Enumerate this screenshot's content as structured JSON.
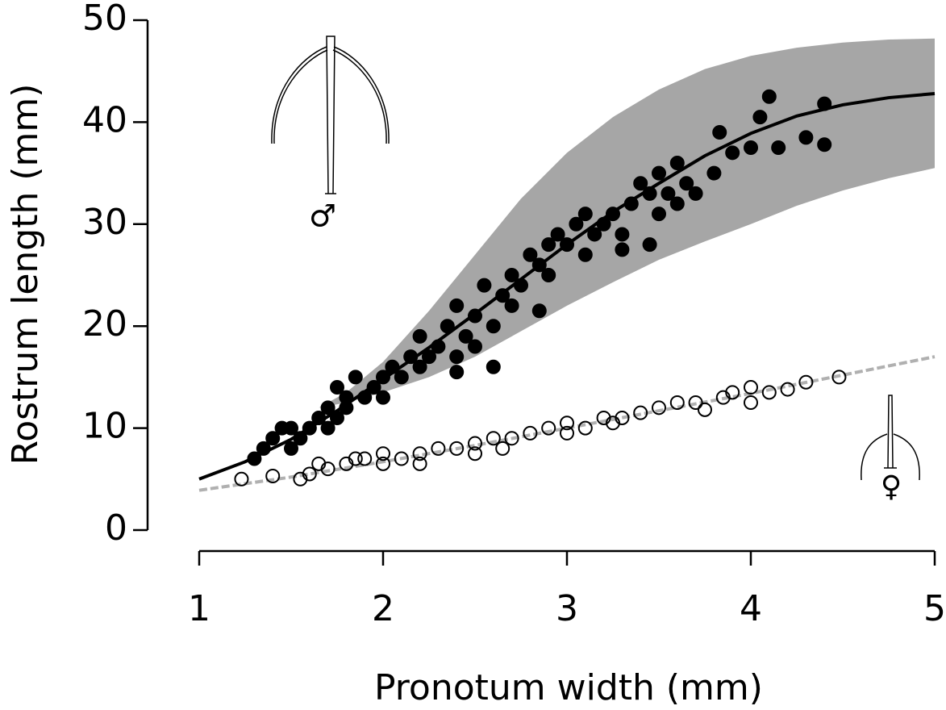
{
  "chart_data": {
    "type": "scatter",
    "xlabel": "Pronotum width (mm)",
    "ylabel": "Rostrum length (mm)",
    "xlim": [
      1,
      5
    ],
    "ylim": [
      0,
      50
    ],
    "xticks": [
      1,
      2,
      3,
      4,
      5
    ],
    "yticks": [
      0,
      10,
      20,
      30,
      40,
      50
    ],
    "annotations": [
      "♂",
      "♀"
    ],
    "band": {
      "color": "#a6a6a6",
      "x": [
        1.65,
        1.8,
        2.0,
        2.25,
        2.5,
        2.75,
        3.0,
        3.25,
        3.5,
        3.75,
        4.0,
        4.25,
        4.5,
        4.75,
        5.0
      ],
      "upper": [
        12,
        13.5,
        16.5,
        21.5,
        27,
        32.5,
        37,
        40.5,
        43.2,
        45.2,
        46.5,
        47.3,
        47.8,
        48.1,
        48.2
      ],
      "lower": [
        12,
        12.5,
        13.5,
        15,
        17,
        19.5,
        22,
        24.3,
        26.5,
        28.3,
        30,
        31.8,
        33.3,
        34.5,
        35.5
      ]
    },
    "fits": [
      {
        "color": "#000000",
        "dashed": false,
        "x": [
          1.0,
          1.25,
          1.5,
          1.75,
          2.0,
          2.25,
          2.5,
          2.75,
          3.0,
          3.25,
          3.5,
          3.75,
          4.0,
          4.25,
          4.5,
          4.75,
          5.0
        ],
        "y": [
          5,
          6.7,
          8.9,
          11.7,
          14.8,
          17.9,
          21.2,
          24.6,
          28,
          31.2,
          34,
          36.7,
          38.9,
          40.6,
          41.7,
          42.4,
          42.8
        ]
      },
      {
        "color": "#b0b0b0",
        "dashed": true,
        "x": [
          1.0,
          1.5,
          2.0,
          2.5,
          3.0,
          3.5,
          4.0,
          4.5,
          5.0
        ],
        "y": [
          3.9,
          5.2,
          6.7,
          8.3,
          10,
          11.7,
          13.4,
          15.2,
          17
        ]
      }
    ],
    "series": [
      {
        "color": "#000000",
        "filled": true,
        "x": [
          1.3,
          1.35,
          1.4,
          1.45,
          1.5,
          1.5,
          1.55,
          1.6,
          1.65,
          1.7,
          1.7,
          1.75,
          1.8,
          1.8,
          1.85,
          1.9,
          1.95,
          2.0,
          2.0,
          2.05,
          2.1,
          2.15,
          2.2,
          2.2,
          2.25,
          2.3,
          2.35,
          2.4,
          2.4,
          2.45,
          2.5,
          2.5,
          2.55,
          2.6,
          2.65,
          2.7,
          2.7,
          2.75,
          2.8,
          2.85,
          2.9,
          2.9,
          2.95,
          3.0,
          3.05,
          3.1,
          3.1,
          3.15,
          3.2,
          3.25,
          3.3,
          3.35,
          3.4,
          3.45,
          3.5,
          3.5,
          3.55,
          3.6,
          3.65,
          3.7,
          3.8,
          3.83,
          3.9,
          4.0,
          4.05,
          4.1,
          4.15,
          4.3,
          4.4,
          4.4,
          3.45,
          3.6,
          2.6,
          2.4,
          1.75,
          2.85,
          3.3
        ],
        "y": [
          7,
          8,
          9,
          10,
          8,
          10,
          9,
          10,
          11,
          12,
          10,
          11,
          13,
          12,
          15,
          13,
          14,
          15,
          13,
          16,
          15,
          17,
          16,
          19,
          17,
          18,
          20,
          17,
          22,
          19,
          21,
          18,
          24,
          20,
          23,
          25,
          22,
          24,
          27,
          26,
          28,
          25,
          29,
          28,
          30,
          27,
          31,
          29,
          30,
          31,
          29,
          32,
          34,
          33,
          35,
          31,
          33,
          36,
          34,
          33,
          35,
          39,
          37,
          37.5,
          40.5,
          42.5,
          37.5,
          38.5,
          41.8,
          37.8,
          28,
          32,
          16,
          15.5,
          14,
          21.5,
          27.5
        ]
      },
      {
        "color": "#000000",
        "filled": false,
        "x": [
          1.23,
          1.4,
          1.55,
          1.6,
          1.65,
          1.7,
          1.8,
          1.9,
          2.0,
          2.0,
          2.1,
          2.2,
          2.3,
          2.4,
          2.5,
          2.5,
          2.6,
          2.7,
          2.8,
          2.9,
          3.0,
          3.0,
          3.1,
          3.2,
          3.3,
          3.4,
          3.5,
          3.6,
          3.7,
          3.75,
          3.85,
          3.9,
          4.0,
          4.0,
          4.1,
          4.2,
          4.3,
          4.48,
          2.2,
          2.65,
          3.25,
          1.85
        ],
        "y": [
          5,
          5.3,
          5,
          5.5,
          6.5,
          6,
          6.5,
          7,
          6.5,
          7.5,
          7,
          7.5,
          8,
          8,
          8.5,
          7.5,
          9,
          9,
          9.5,
          10,
          10.5,
          9.5,
          10,
          11,
          11,
          11.5,
          12,
          12.5,
          12.5,
          11.8,
          13,
          13.5,
          14,
          12.5,
          13.5,
          13.8,
          14.5,
          15,
          6.5,
          8,
          10.5,
          7
        ]
      }
    ]
  }
}
